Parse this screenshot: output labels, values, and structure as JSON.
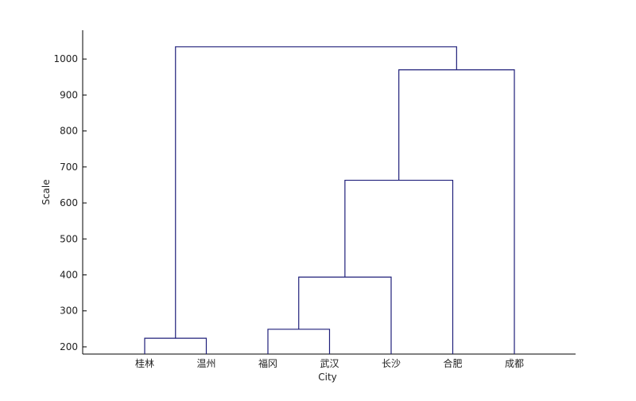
{
  "chart_data": {
    "type": "dendrogram",
    "title": "",
    "xlabel": "City",
    "ylabel": "Scale",
    "ylim": [
      180,
      1080
    ],
    "yticks": [
      200,
      300,
      400,
      500,
      600,
      700,
      800,
      900,
      1000
    ],
    "grid": false,
    "legend": "none",
    "leaves": [
      "桂林",
      "温州",
      "福冈",
      "武汉",
      "长沙",
      "合肥",
      "成都"
    ],
    "merges": [
      {
        "left": "桂林",
        "right": "温州",
        "height": 224
      },
      {
        "left": "福冈",
        "right": "武汉",
        "height": 249
      },
      {
        "left": "福冈+武汉",
        "right": "长沙",
        "height": 394
      },
      {
        "left": "福冈+武汉+长沙",
        "right": "合肥",
        "height": 663
      },
      {
        "left": "福冈+武汉+长沙+合肥",
        "right": "成都",
        "height": 970
      },
      {
        "left": "桂林+温州",
        "right": "福冈+武汉+长沙+合肥+成都",
        "height": 1034
      }
    ],
    "line_color": "#1f1f7a"
  }
}
